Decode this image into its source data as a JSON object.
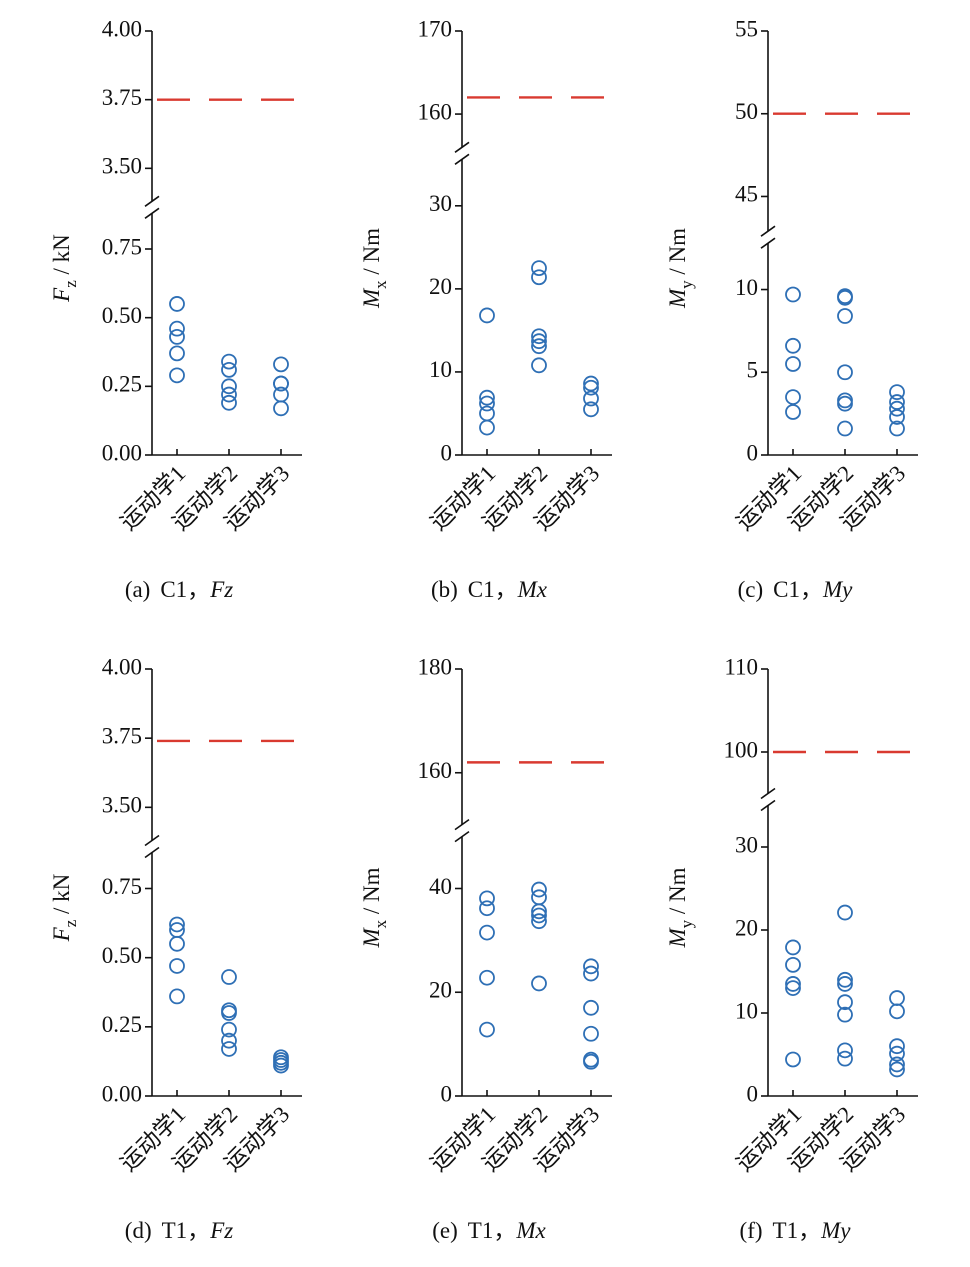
{
  "chart_data": [
    {
      "type": "scatter",
      "caption_label": "(a)",
      "caption_case": "C1，",
      "caption_quantity": "Fz",
      "ylabel_symbol": "F",
      "ylabel_subscript": "z",
      "ylabel_unit": " / kN",
      "categories": [
        "运动学1",
        "运动学2",
        "运动学3"
      ],
      "color": "#2e6fb5",
      "values": [
        [
          0.55,
          0.46,
          0.43,
          0.37,
          0.29
        ],
        [
          0.34,
          0.31,
          0.25,
          0.22,
          0.19
        ],
        [
          0.33,
          0.26,
          0.26,
          0.22,
          0.17
        ]
      ],
      "threshold": 3.75,
      "threshold_color": "#d93a30",
      "ylim": [
        0,
        0.88
      ],
      "yticks": [
        {
          "value": 0,
          "label": "0.00"
        },
        0.25,
        {
          "value": 0.5,
          "label": "0.50"
        },
        0.75
      ],
      "ylim_upper": [
        3.38,
        4.0
      ],
      "yticks_upper": [
        {
          "value": 3.5,
          "label": "3.50"
        },
        3.75,
        {
          "value": 4,
          "label": "4.00"
        }
      ]
    },
    {
      "type": "scatter",
      "caption_label": "(b)",
      "caption_case": "C1，",
      "caption_quantity": "Mx",
      "ylabel_symbol": "M",
      "ylabel_subscript": "x",
      "ylabel_unit": " / Nm",
      "categories": [
        "运动学1",
        "运动学2",
        "运动学3"
      ],
      "color": "#2e6fb5",
      "values": [
        [
          16.8,
          6.9,
          6.2,
          5.0,
          3.3
        ],
        [
          22.5,
          21.4,
          14.3,
          13.7,
          13.1,
          10.8
        ],
        [
          8.6,
          8.1,
          6.8,
          5.5
        ]
      ],
      "threshold": 162,
      "threshold_color": "#d93a30",
      "ylim": [
        0,
        35.6
      ],
      "yticks": [
        0,
        10,
        20,
        30
      ],
      "ylim_upper": [
        156,
        170
      ],
      "yticks_upper": [
        160,
        170
      ]
    },
    {
      "type": "scatter",
      "caption_label": "(c)",
      "caption_case": "C1，",
      "caption_quantity": "My",
      "ylabel_symbol": "M",
      "ylabel_subscript": "y",
      "ylabel_unit": " / Nm",
      "categories": [
        "运动学1",
        "运动学2",
        "运动学3"
      ],
      "color": "#2e6fb5",
      "values": [
        [
          9.7,
          6.6,
          5.5,
          3.5,
          2.6
        ],
        [
          9.6,
          9.5,
          8.4,
          5.0,
          3.3,
          3.1,
          1.6
        ],
        [
          3.8,
          3.2,
          2.8,
          2.3,
          1.6
        ]
      ],
      "threshold": 50,
      "threshold_color": "#d93a30",
      "ylim": [
        0,
        12.8
      ],
      "yticks": [
        0,
        5,
        10
      ],
      "ylim_upper": [
        42.9,
        55
      ],
      "yticks_upper": [
        45,
        50,
        55
      ]
    },
    {
      "type": "scatter",
      "caption_label": "(d)",
      "caption_case": "T1，",
      "caption_quantity": "Fz",
      "ylabel_symbol": "F",
      "ylabel_subscript": "z",
      "ylabel_unit": " / kN",
      "categories": [
        "运动学1",
        "运动学2",
        "运动学3"
      ],
      "color": "#2e6fb5",
      "values": [
        [
          0.62,
          0.6,
          0.55,
          0.47,
          0.36
        ],
        [
          0.43,
          0.31,
          0.3,
          0.24,
          0.2,
          0.17
        ],
        [
          0.14,
          0.13,
          0.12,
          0.11
        ]
      ],
      "threshold": 3.74,
      "threshold_color": "#d93a30",
      "ylim": [
        0,
        0.88
      ],
      "yticks": [
        {
          "value": 0,
          "label": "0.00"
        },
        0.25,
        {
          "value": 0.5,
          "label": "0.50"
        },
        0.75
      ],
      "ylim_upper": [
        3.38,
        4.0
      ],
      "yticks_upper": [
        {
          "value": 3.5,
          "label": "3.50"
        },
        3.75,
        {
          "value": 4,
          "label": "4.00"
        }
      ]
    },
    {
      "type": "scatter",
      "caption_label": "(e)",
      "caption_case": "T1，",
      "caption_quantity": "Mx",
      "ylabel_symbol": "M",
      "ylabel_subscript": "x",
      "ylabel_unit": " / Nm",
      "categories": [
        "运动学1",
        "运动学2",
        "运动学3"
      ],
      "color": "#2e6fb5",
      "values": [
        [
          38.1,
          36.2,
          31.5,
          22.8,
          12.8
        ],
        [
          39.8,
          38.3,
          35.6,
          34.8,
          33.7,
          21.7
        ],
        [
          25.0,
          23.6,
          17.0,
          12.0,
          7.0,
          6.6
        ]
      ],
      "threshold": 162,
      "threshold_color": "#d93a30",
      "ylim": [
        0,
        50
      ],
      "yticks": [
        0,
        20,
        40
      ],
      "ylim_upper": [
        150,
        180
      ],
      "yticks_upper": [
        160,
        180
      ]
    },
    {
      "type": "scatter",
      "caption_label": "(f)",
      "caption_case": "T1，",
      "caption_quantity": "My",
      "ylabel_symbol": "M",
      "ylabel_subscript": "y",
      "ylabel_unit": " / Nm",
      "categories": [
        "运动学1",
        "运动学2",
        "运动学3"
      ],
      "color": "#2e6fb5",
      "values": [
        [
          17.9,
          15.8,
          13.5,
          13.0,
          4.4
        ],
        [
          22.1,
          14.0,
          13.5,
          11.3,
          9.8,
          5.5,
          4.5
        ],
        [
          11.8,
          10.2,
          6.0,
          5.1,
          3.8,
          3.2
        ]
      ],
      "threshold": 100,
      "threshold_color": "#d93a30",
      "ylim": [
        0,
        35
      ],
      "yticks": [
        0,
        10,
        20,
        30
      ],
      "ylim_upper": [
        95,
        110
      ],
      "yticks_upper": [
        100,
        110
      ]
    }
  ]
}
